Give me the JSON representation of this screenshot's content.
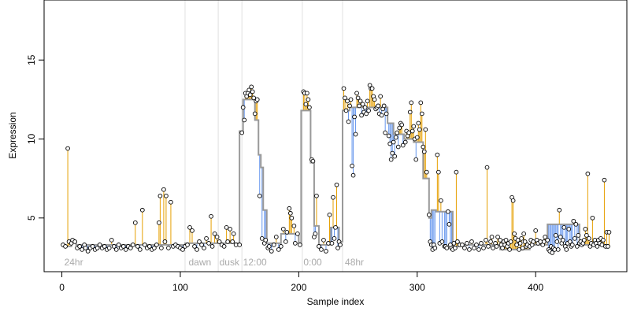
{
  "chart_data": {
    "type": "scatter",
    "title": "",
    "xlabel": "Sample index",
    "ylabel": "Expression",
    "xlim": [
      -15,
      477
    ],
    "ylim": [
      1.6,
      18.8
    ],
    "x_ticks": [
      0,
      100,
      200,
      300,
      400
    ],
    "y_ticks": [
      5,
      10,
      15
    ],
    "grid": false,
    "legend": "none",
    "colors": {
      "up_segment": "#e69f00",
      "down_segment": "#6495ed",
      "fitted_line": "#999999",
      "point_fill": "#ffffff",
      "point_stroke": "#000000",
      "phase_line": "#e0e0e0",
      "phase_label": "#aaaaaa"
    },
    "phase_boundaries": [
      104,
      132,
      152,
      203,
      237
    ],
    "phase_labels": [
      {
        "x": 2,
        "text": "24hr"
      },
      {
        "x": 107,
        "text": "dawn"
      },
      {
        "x": 133,
        "text": "dusk"
      },
      {
        "x": 153,
        "text": "12:00"
      },
      {
        "x": 204,
        "text": "0:00"
      },
      {
        "x": 239,
        "text": "48hr"
      }
    ],
    "fitted_steps": [
      {
        "x0": 0,
        "x1": 8,
        "y": 3.2
      },
      {
        "x0": 8,
        "x1": 12,
        "y": 3.5
      },
      {
        "x0": 12,
        "x1": 104,
        "y": 3.3
      },
      {
        "x0": 104,
        "x1": 150,
        "y": 3.4
      },
      {
        "x0": 150,
        "x1": 153,
        "y": 10.5
      },
      {
        "x0": 153,
        "x1": 163,
        "y": 12.5
      },
      {
        "x0": 163,
        "x1": 166,
        "y": 11.2
      },
      {
        "x0": 166,
        "x1": 168,
        "y": 9.0
      },
      {
        "x0": 168,
        "x1": 170,
        "y": 8.2
      },
      {
        "x0": 170,
        "x1": 173,
        "y": 5.5
      },
      {
        "x0": 173,
        "x1": 185,
        "y": 3.4
      },
      {
        "x0": 185,
        "x1": 200,
        "y": 4.0
      },
      {
        "x0": 200,
        "x1": 202,
        "y": 3.4
      },
      {
        "x0": 202,
        "x1": 205,
        "y": 11.8
      },
      {
        "x0": 205,
        "x1": 210,
        "y": 11.8
      },
      {
        "x0": 210,
        "x1": 213,
        "y": 8.5
      },
      {
        "x0": 213,
        "x1": 217,
        "y": 4.5
      },
      {
        "x0": 217,
        "x1": 227,
        "y": 3.3
      },
      {
        "x0": 227,
        "x1": 234,
        "y": 4.4
      },
      {
        "x0": 234,
        "x1": 237,
        "y": 3.5
      },
      {
        "x0": 237,
        "x1": 243,
        "y": 11.8
      },
      {
        "x0": 243,
        "x1": 275,
        "y": 12.0
      },
      {
        "x0": 275,
        "x1": 280,
        "y": 11.0
      },
      {
        "x0": 280,
        "x1": 289,
        "y": 10.3
      },
      {
        "x0": 289,
        "x1": 297,
        "y": 10.0
      },
      {
        "x0": 297,
        "x1": 305,
        "y": 9.8
      },
      {
        "x0": 305,
        "x1": 310,
        "y": 7.5
      },
      {
        "x0": 310,
        "x1": 312,
        "y": 5.0
      },
      {
        "x0": 312,
        "x1": 316,
        "y": 5.5
      },
      {
        "x0": 316,
        "x1": 322,
        "y": 5.4
      },
      {
        "x0": 322,
        "x1": 330,
        "y": 5.4
      },
      {
        "x0": 330,
        "x1": 335,
        "y": 3.2
      },
      {
        "x0": 335,
        "x1": 370,
        "y": 3.3
      },
      {
        "x0": 370,
        "x1": 395,
        "y": 3.0
      },
      {
        "x0": 395,
        "x1": 410,
        "y": 3.3
      },
      {
        "x0": 410,
        "x1": 437,
        "y": 4.6
      },
      {
        "x0": 437,
        "x1": 460,
        "y": 3.3
      },
      {
        "x0": 460,
        "x1": 462,
        "y": 3.1
      }
    ],
    "points": [
      [
        1,
        3.3
      ],
      [
        3,
        3.2
      ],
      [
        5,
        9.4
      ],
      [
        6,
        3.5
      ],
      [
        8,
        3.4
      ],
      [
        9,
        3.6
      ],
      [
        11,
        3.5
      ],
      [
        13,
        3.1
      ],
      [
        15,
        3.2
      ],
      [
        17,
        3.0
      ],
      [
        19,
        3.3
      ],
      [
        20,
        3.1
      ],
      [
        22,
        2.9
      ],
      [
        24,
        3.1
      ],
      [
        26,
        3.2
      ],
      [
        28,
        3.0
      ],
      [
        30,
        3.1
      ],
      [
        32,
        3.3
      ],
      [
        34,
        3.1
      ],
      [
        36,
        3.2
      ],
      [
        38,
        3.0
      ],
      [
        40,
        3.1
      ],
      [
        42,
        3.6
      ],
      [
        44,
        3.2
      ],
      [
        46,
        3.0
      ],
      [
        48,
        3.3
      ],
      [
        50,
        3.1
      ],
      [
        52,
        3.2
      ],
      [
        54,
        3.0
      ],
      [
        56,
        3.2
      ],
      [
        58,
        3.1
      ],
      [
        60,
        3.3
      ],
      [
        62,
        4.7
      ],
      [
        64,
        3.2
      ],
      [
        66,
        3.0
      ],
      [
        68,
        5.5
      ],
      [
        70,
        3.3
      ],
      [
        72,
        3.1
      ],
      [
        74,
        3.2
      ],
      [
        76,
        3.0
      ],
      [
        78,
        3.1
      ],
      [
        80,
        3.3
      ],
      [
        82,
        4.7
      ],
      [
        83,
        6.4
      ],
      [
        84,
        3.1
      ],
      [
        86,
        6.8
      ],
      [
        87,
        3.5
      ],
      [
        88,
        6.4
      ],
      [
        90,
        3.1
      ],
      [
        92,
        6.0
      ],
      [
        94,
        3.2
      ],
      [
        96,
        3.3
      ],
      [
        98,
        3.2
      ],
      [
        100,
        3.1
      ],
      [
        102,
        3.0
      ],
      [
        104,
        3.2
      ],
      [
        106,
        3.3
      ],
      [
        108,
        4.4
      ],
      [
        110,
        4.2
      ],
      [
        112,
        3.2
      ],
      [
        114,
        3.0
      ],
      [
        116,
        3.5
      ],
      [
        118,
        3.3
      ],
      [
        120,
        3.1
      ],
      [
        122,
        3.7
      ],
      [
        124,
        3.4
      ],
      [
        126,
        5.1
      ],
      [
        127,
        3.2
      ],
      [
        129,
        4.0
      ],
      [
        131,
        3.8
      ],
      [
        133,
        3.5
      ],
      [
        135,
        3.3
      ],
      [
        137,
        3.2
      ],
      [
        139,
        4.4
      ],
      [
        140,
        3.5
      ],
      [
        142,
        4.3
      ],
      [
        144,
        3.5
      ],
      [
        145,
        4.0
      ],
      [
        147,
        3.3
      ],
      [
        150,
        3.3
      ],
      [
        152,
        10.4
      ],
      [
        153,
        12.0
      ],
      [
        154,
        11.2
      ],
      [
        155,
        12.9
      ],
      [
        156,
        12.7
      ],
      [
        157,
        12.9
      ],
      [
        158,
        13.1
      ],
      [
        159,
        12.8
      ],
      [
        160,
        13.3
      ],
      [
        161,
        13.0
      ],
      [
        162,
        12.6
      ],
      [
        163,
        11.6
      ],
      [
        164,
        12.4
      ],
      [
        165,
        12.5
      ],
      [
        167,
        6.4
      ],
      [
        169,
        3.7
      ],
      [
        171,
        3.4
      ],
      [
        172,
        3.6
      ],
      [
        174,
        3.1
      ],
      [
        175,
        3.2
      ],
      [
        177,
        2.9
      ],
      [
        179,
        3.3
      ],
      [
        181,
        3.8
      ],
      [
        183,
        3.0
      ],
      [
        185,
        3.2
      ],
      [
        187,
        4.3
      ],
      [
        189,
        3.5
      ],
      [
        190,
        4.1
      ],
      [
        192,
        5.6
      ],
      [
        193,
        5.3
      ],
      [
        194,
        5.0
      ],
      [
        196,
        4.5
      ],
      [
        197,
        3.4
      ],
      [
        199,
        4.0
      ],
      [
        201,
        3.3
      ],
      [
        204,
        13.0
      ],
      [
        205,
        12.9
      ],
      [
        206,
        12.2
      ],
      [
        207,
        12.9
      ],
      [
        208,
        12.5
      ],
      [
        209,
        12.0
      ],
      [
        211,
        8.7
      ],
      [
        212,
        8.6
      ],
      [
        213,
        3.8
      ],
      [
        214,
        4.0
      ],
      [
        215,
        6.4
      ],
      [
        217,
        3.2
      ],
      [
        219,
        3.0
      ],
      [
        221,
        3.6
      ],
      [
        223,
        2.9
      ],
      [
        225,
        3.4
      ],
      [
        226,
        5.2
      ],
      [
        228,
        3.4
      ],
      [
        229,
        6.3
      ],
      [
        230,
        3.7
      ],
      [
        231,
        4.4
      ],
      [
        232,
        7.1
      ],
      [
        233,
        3.1
      ],
      [
        234,
        3.5
      ],
      [
        235,
        3.3
      ],
      [
        238,
        13.2
      ],
      [
        239,
        12.6
      ],
      [
        240,
        11.8
      ],
      [
        241,
        12.4
      ],
      [
        242,
        11.1
      ],
      [
        243,
        12.1
      ],
      [
        244,
        12.5
      ],
      [
        245,
        8.3
      ],
      [
        246,
        7.7
      ],
      [
        247,
        11.4
      ],
      [
        248,
        10.3
      ],
      [
        249,
        12.9
      ],
      [
        250,
        12.6
      ],
      [
        251,
        12.1
      ],
      [
        252,
        12.4
      ],
      [
        253,
        11.5
      ],
      [
        254,
        12.2
      ],
      [
        255,
        11.7
      ],
      [
        256,
        12.0
      ],
      [
        257,
        11.6
      ],
      [
        258,
        12.4
      ],
      [
        259,
        11.8
      ],
      [
        260,
        13.4
      ],
      [
        261,
        13.2
      ],
      [
        262,
        13.2
      ],
      [
        263,
        12.7
      ],
      [
        264,
        12.5
      ],
      [
        265,
        11.9
      ],
      [
        266,
        12.0
      ],
      [
        267,
        12.1
      ],
      [
        268,
        11.6
      ],
      [
        269,
        12.7
      ],
      [
        270,
        11.5
      ],
      [
        271,
        11.9
      ],
      [
        272,
        12.1
      ],
      [
        273,
        10.4
      ],
      [
        274,
        11.6
      ],
      [
        276,
        10.2
      ],
      [
        277,
        9.7
      ],
      [
        278,
        8.7
      ],
      [
        279,
        9.1
      ],
      [
        280,
        9.8
      ],
      [
        281,
        8.9
      ],
      [
        282,
        10.1
      ],
      [
        283,
        10.4
      ],
      [
        284,
        9.5
      ],
      [
        285,
        10.7
      ],
      [
        286,
        11.0
      ],
      [
        287,
        10.9
      ],
      [
        288,
        9.6
      ],
      [
        290,
        9.8
      ],
      [
        291,
        10.5
      ],
      [
        292,
        10.2
      ],
      [
        293,
        10.4
      ],
      [
        294,
        11.7
      ],
      [
        295,
        12.3
      ],
      [
        296,
        10.5
      ],
      [
        297,
        10.8
      ],
      [
        298,
        10.0
      ],
      [
        299,
        8.7
      ],
      [
        300,
        10.1
      ],
      [
        301,
        11.0
      ],
      [
        302,
        10.6
      ],
      [
        303,
        12.3
      ],
      [
        304,
        11.6
      ],
      [
        305,
        9.5
      ],
      [
        306,
        9.2
      ],
      [
        307,
        10.6
      ],
      [
        308,
        7.9
      ],
      [
        310,
        5.2
      ],
      [
        311,
        3.5
      ],
      [
        312,
        3.3
      ],
      [
        313,
        3.0
      ],
      [
        314,
        3.3
      ],
      [
        315,
        3.1
      ],
      [
        317,
        9.0
      ],
      [
        318,
        7.9
      ],
      [
        319,
        3.4
      ],
      [
        320,
        6.1
      ],
      [
        321,
        3.5
      ],
      [
        323,
        3.2
      ],
      [
        324,
        3.2
      ],
      [
        325,
        3.1
      ],
      [
        326,
        5.4
      ],
      [
        327,
        4.6
      ],
      [
        328,
        3.3
      ],
      [
        329,
        3.1
      ],
      [
        330,
        3.0
      ],
      [
        331,
        3.4
      ],
      [
        332,
        3.1
      ],
      [
        333,
        7.9
      ],
      [
        334,
        3.5
      ],
      [
        336,
        3.3
      ],
      [
        338,
        3.3
      ],
      [
        340,
        3.1
      ],
      [
        342,
        3.4
      ],
      [
        344,
        3.0
      ],
      [
        346,
        3.5
      ],
      [
        348,
        3.1
      ],
      [
        350,
        3.3
      ],
      [
        352,
        3.0
      ],
      [
        354,
        3.4
      ],
      [
        356,
        3.1
      ],
      [
        358,
        3.6
      ],
      [
        359,
        8.2
      ],
      [
        360,
        3.2
      ],
      [
        362,
        3.5
      ],
      [
        363,
        3.8
      ],
      [
        364,
        3.1
      ],
      [
        366,
        3.4
      ],
      [
        367,
        3.2
      ],
      [
        368,
        3.8
      ],
      [
        370,
        3.6
      ],
      [
        371,
        3.3
      ],
      [
        372,
        3.1
      ],
      [
        373,
        3.5
      ],
      [
        374,
        3.3
      ],
      [
        375,
        3.6
      ],
      [
        376,
        3.2
      ],
      [
        377,
        3.4
      ],
      [
        378,
        3.0
      ],
      [
        379,
        3.5
      ],
      [
        380,
        6.3
      ],
      [
        381,
        6.1
      ],
      [
        382,
        4.0
      ],
      [
        383,
        3.7
      ],
      [
        384,
        3.3
      ],
      [
        385,
        3.6
      ],
      [
        386,
        3.0
      ],
      [
        387,
        3.4
      ],
      [
        388,
        3.7
      ],
      [
        389,
        3.1
      ],
      [
        390,
        4.0
      ],
      [
        391,
        3.5
      ],
      [
        392,
        3.2
      ],
      [
        393,
        3.3
      ],
      [
        395,
        3.2
      ],
      [
        396,
        3.6
      ],
      [
        397,
        3.3
      ],
      [
        398,
        3.5
      ],
      [
        400,
        4.2
      ],
      [
        401,
        3.6
      ],
      [
        402,
        3.4
      ],
      [
        404,
        3.5
      ],
      [
        406,
        3.3
      ],
      [
        407,
        3.5
      ],
      [
        408,
        3.8
      ],
      [
        410,
        3.6
      ],
      [
        411,
        3.0
      ],
      [
        412,
        2.9
      ],
      [
        413,
        3.2
      ],
      [
        414,
        2.8
      ],
      [
        415,
        3.1
      ],
      [
        416,
        3.0
      ],
      [
        417,
        3.9
      ],
      [
        418,
        3.5
      ],
      [
        419,
        3.0
      ],
      [
        420,
        5.5
      ],
      [
        421,
        3.8
      ],
      [
        422,
        3.4
      ],
      [
        423,
        3.6
      ],
      [
        424,
        4.4
      ],
      [
        425,
        3.2
      ],
      [
        426,
        3.0
      ],
      [
        427,
        3.4
      ],
      [
        428,
        4.3
      ],
      [
        429,
        3.5
      ],
      [
        430,
        3.2
      ],
      [
        431,
        3.3
      ],
      [
        432,
        4.8
      ],
      [
        433,
        3.7
      ],
      [
        434,
        4.6
      ],
      [
        435,
        3.2
      ],
      [
        436,
        3.9
      ],
      [
        437,
        3.4
      ],
      [
        438,
        3.5
      ],
      [
        439,
        3.3
      ],
      [
        440,
        3.4
      ],
      [
        441,
        3.6
      ],
      [
        442,
        4.3
      ],
      [
        443,
        3.9
      ],
      [
        444,
        7.8
      ],
      [
        445,
        3.7
      ],
      [
        446,
        3.2
      ],
      [
        447,
        3.4
      ],
      [
        448,
        5.0
      ],
      [
        449,
        3.3
      ],
      [
        450,
        3.6
      ],
      [
        451,
        3.4
      ],
      [
        452,
        3.2
      ],
      [
        453,
        3.6
      ],
      [
        454,
        3.4
      ],
      [
        455,
        3.7
      ],
      [
        456,
        3.3
      ],
      [
        457,
        3.6
      ],
      [
        458,
        7.4
      ],
      [
        459,
        3.2
      ],
      [
        460,
        4.1
      ],
      [
        461,
        3.2
      ],
      [
        462,
        4.1
      ]
    ]
  }
}
